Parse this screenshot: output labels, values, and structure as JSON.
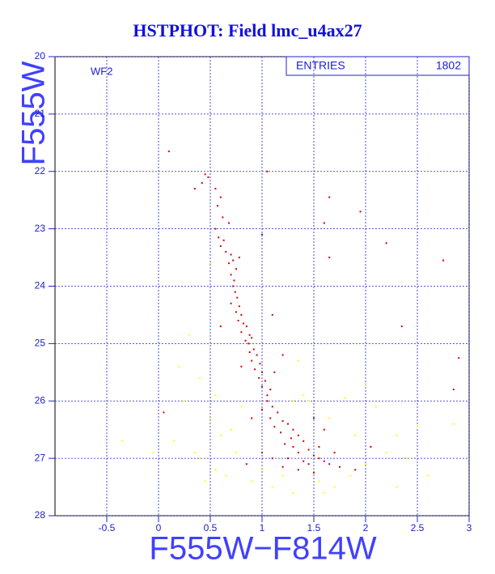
{
  "chart_data": {
    "type": "scatter",
    "title": "HSTPHOT: Field lmc_u4ax27",
    "panel_label": "WF2",
    "stats_label": "ENTRIES",
    "stats_value": "1802",
    "x_label": "F555W−F814W",
    "y_label": "F555W",
    "xlim": [
      -1,
      3
    ],
    "ylim": [
      28,
      20
    ],
    "y_inverted": true,
    "xticks": [
      -0.5,
      0,
      0.5,
      1,
      1.5,
      2,
      2.5,
      3
    ],
    "yticks": [
      20,
      21,
      22,
      23,
      24,
      25,
      26,
      27,
      28
    ],
    "grid": true,
    "series": [
      {
        "color": "#ffff00",
        "x": [
          -0.35,
          0.15,
          -0.05,
          0.35,
          0.5,
          0.6,
          0.4,
          0.55,
          0.75,
          0.7,
          0.65,
          0.9,
          1.1,
          1.3,
          1.55,
          1.7,
          1.85,
          2.0,
          2.2,
          2.4,
          2.6,
          2.3,
          1.9,
          1.65,
          1.8,
          2.1,
          2.3,
          2.5,
          2.85,
          0.2,
          0.4,
          0.55,
          0.25,
          0.8,
          1.4,
          1.3,
          1.2,
          1.0,
          0.3,
          0.5,
          1.35,
          2.0,
          1.6,
          1.45,
          0.45
        ],
        "values": [
          26.7,
          26.7,
          26.9,
          26.9,
          26.3,
          26.6,
          27.0,
          27.2,
          26.9,
          26.5,
          27.3,
          27.4,
          27.5,
          27.6,
          27.4,
          27.5,
          27.3,
          27.1,
          26.9,
          27.0,
          27.3,
          27.5,
          26.6,
          26.3,
          25.95,
          26.1,
          26.6,
          26.45,
          26.4,
          25.4,
          25.6,
          25.9,
          26.0,
          26.1,
          25.9,
          26.0,
          27.3,
          27.2,
          24.85,
          23.6,
          25.3,
          25.7,
          27.6,
          26.0,
          27.4
        ]
      },
      {
        "color": "#d40000",
        "x": [
          0.1,
          0.45,
          0.48,
          0.42,
          0.55,
          0.35,
          0.6,
          0.57,
          0.62,
          0.68,
          1.65,
          1.95,
          1.05,
          1.6,
          0.55,
          0.58,
          0.6,
          0.65,
          0.7,
          0.72,
          0.68,
          0.75,
          0.7,
          0.73,
          0.78,
          0.63,
          2.2,
          2.75,
          1.65,
          1.0,
          0.72,
          0.74,
          0.76,
          0.7,
          0.78,
          0.75,
          0.8,
          0.77,
          0.82,
          0.85,
          0.8,
          0.88,
          0.9,
          0.84,
          0.6,
          1.1,
          2.35,
          0.87,
          0.92,
          0.88,
          0.95,
          0.9,
          0.98,
          0.93,
          1.0,
          0.97,
          1.03,
          1.0,
          1.08,
          1.05,
          1.12,
          0.8,
          1.2,
          2.9,
          1.05,
          1.1,
          1.0,
          1.15,
          1.08,
          1.2,
          1.25,
          1.12,
          1.3,
          1.18,
          1.35,
          1.28,
          1.4,
          1.22,
          0.9,
          1.5,
          1.6,
          0.05,
          2.85,
          1.3,
          1.45,
          1.35,
          1.5,
          1.25,
          1.55,
          1.4,
          1.6,
          1.45,
          1.7,
          1.65,
          1.1,
          1.0,
          1.35,
          1.5,
          1.75,
          0.85,
          2.05,
          1.9,
          1.55,
          1.2
        ],
        "values": [
          21.65,
          22.05,
          22.1,
          22.2,
          22.3,
          22.3,
          22.45,
          22.6,
          22.8,
          22.9,
          22.45,
          22.7,
          22.0,
          22.9,
          23.0,
          23.15,
          23.3,
          23.4,
          23.45,
          23.55,
          23.6,
          23.7,
          23.8,
          23.9,
          23.5,
          23.2,
          23.25,
          23.55,
          23.5,
          23.1,
          24.0,
          24.1,
          24.2,
          24.3,
          24.35,
          24.45,
          24.5,
          24.6,
          24.65,
          24.7,
          24.8,
          24.85,
          24.9,
          24.95,
          24.7,
          24.5,
          24.7,
          25.0,
          25.1,
          25.15,
          25.2,
          25.3,
          25.35,
          25.45,
          25.5,
          25.6,
          25.65,
          25.75,
          25.8,
          25.9,
          25.5,
          25.4,
          25.2,
          25.25,
          26.0,
          26.1,
          26.15,
          26.2,
          26.3,
          26.35,
          26.4,
          26.45,
          26.5,
          26.55,
          26.6,
          26.65,
          26.7,
          26.75,
          26.3,
          26.3,
          26.5,
          26.2,
          25.8,
          26.8,
          26.85,
          26.9,
          26.95,
          27.0,
          27.0,
          27.05,
          27.05,
          27.1,
          26.9,
          27.1,
          27.0,
          26.9,
          27.2,
          27.25,
          27.15,
          27.1,
          26.8,
          27.2,
          26.8,
          27.15
        ]
      }
    ]
  }
}
